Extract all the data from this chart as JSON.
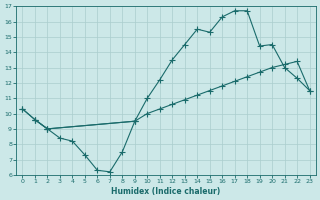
{
  "xlabel": "Humidex (Indice chaleur)",
  "xlim": [
    -0.5,
    23.5
  ],
  "ylim": [
    6,
    17
  ],
  "xticks": [
    0,
    1,
    2,
    3,
    4,
    5,
    6,
    7,
    8,
    9,
    10,
    11,
    12,
    13,
    14,
    15,
    16,
    17,
    18,
    19,
    20,
    21,
    22,
    23
  ],
  "yticks": [
    6,
    7,
    8,
    9,
    10,
    11,
    12,
    13,
    14,
    15,
    16,
    17
  ],
  "bg_color": "#cce8e8",
  "grid_color": "#aacece",
  "line_color": "#1a6b6b",
  "line1_x": [
    0,
    1,
    2,
    9,
    10,
    11,
    12,
    13,
    14,
    15,
    16,
    17,
    18,
    19,
    20,
    21,
    22,
    23
  ],
  "line1_y": [
    10.3,
    9.6,
    9.0,
    9.5,
    11.0,
    12.2,
    13.5,
    14.5,
    15.5,
    15.3,
    16.3,
    16.7,
    16.7,
    14.4,
    14.5,
    13.0,
    12.3,
    11.5
  ],
  "line2_x": [
    0,
    1,
    2,
    9,
    10,
    11,
    12,
    13,
    14,
    15,
    16,
    17,
    18,
    19,
    20,
    21,
    22,
    23
  ],
  "line2_y": [
    10.3,
    9.6,
    9.0,
    9.5,
    10.0,
    10.3,
    10.6,
    10.9,
    11.2,
    11.5,
    11.8,
    12.1,
    12.4,
    12.7,
    13.0,
    13.2,
    13.4,
    11.5
  ],
  "line3_x": [
    1,
    2,
    3,
    4,
    5,
    6,
    7,
    8,
    9
  ],
  "line3_y": [
    9.6,
    9.0,
    8.4,
    8.2,
    7.3,
    6.3,
    6.2,
    7.5,
    9.5
  ]
}
